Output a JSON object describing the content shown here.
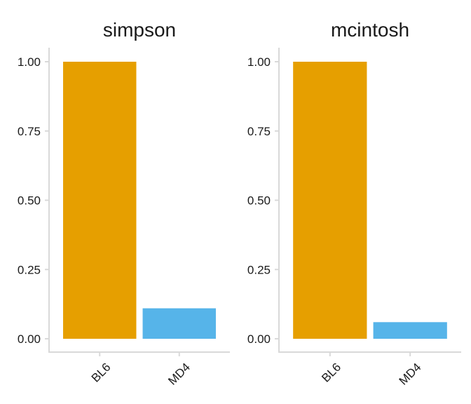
{
  "chart_data": [
    {
      "type": "bar",
      "title": "simpson",
      "categories": [
        "BL6",
        "MD4"
      ],
      "values": [
        1.0,
        0.11
      ],
      "colors": [
        "#E69F00",
        "#56B4E9"
      ],
      "ylim": [
        0,
        1
      ],
      "yticks": [
        "0.00",
        "0.25",
        "0.50",
        "0.75",
        "1.00"
      ],
      "xlabel": "",
      "ylabel": "",
      "grid": false,
      "legend": "none"
    },
    {
      "type": "bar",
      "title": "mcintosh",
      "categories": [
        "BL6",
        "MD4"
      ],
      "values": [
        1.0,
        0.06
      ],
      "colors": [
        "#E69F00",
        "#56B4E9"
      ],
      "ylim": [
        0,
        1
      ],
      "yticks": [
        "0.00",
        "0.25",
        "0.50",
        "0.75",
        "1.00"
      ],
      "xlabel": "",
      "ylabel": "",
      "grid": false,
      "legend": "none"
    }
  ]
}
